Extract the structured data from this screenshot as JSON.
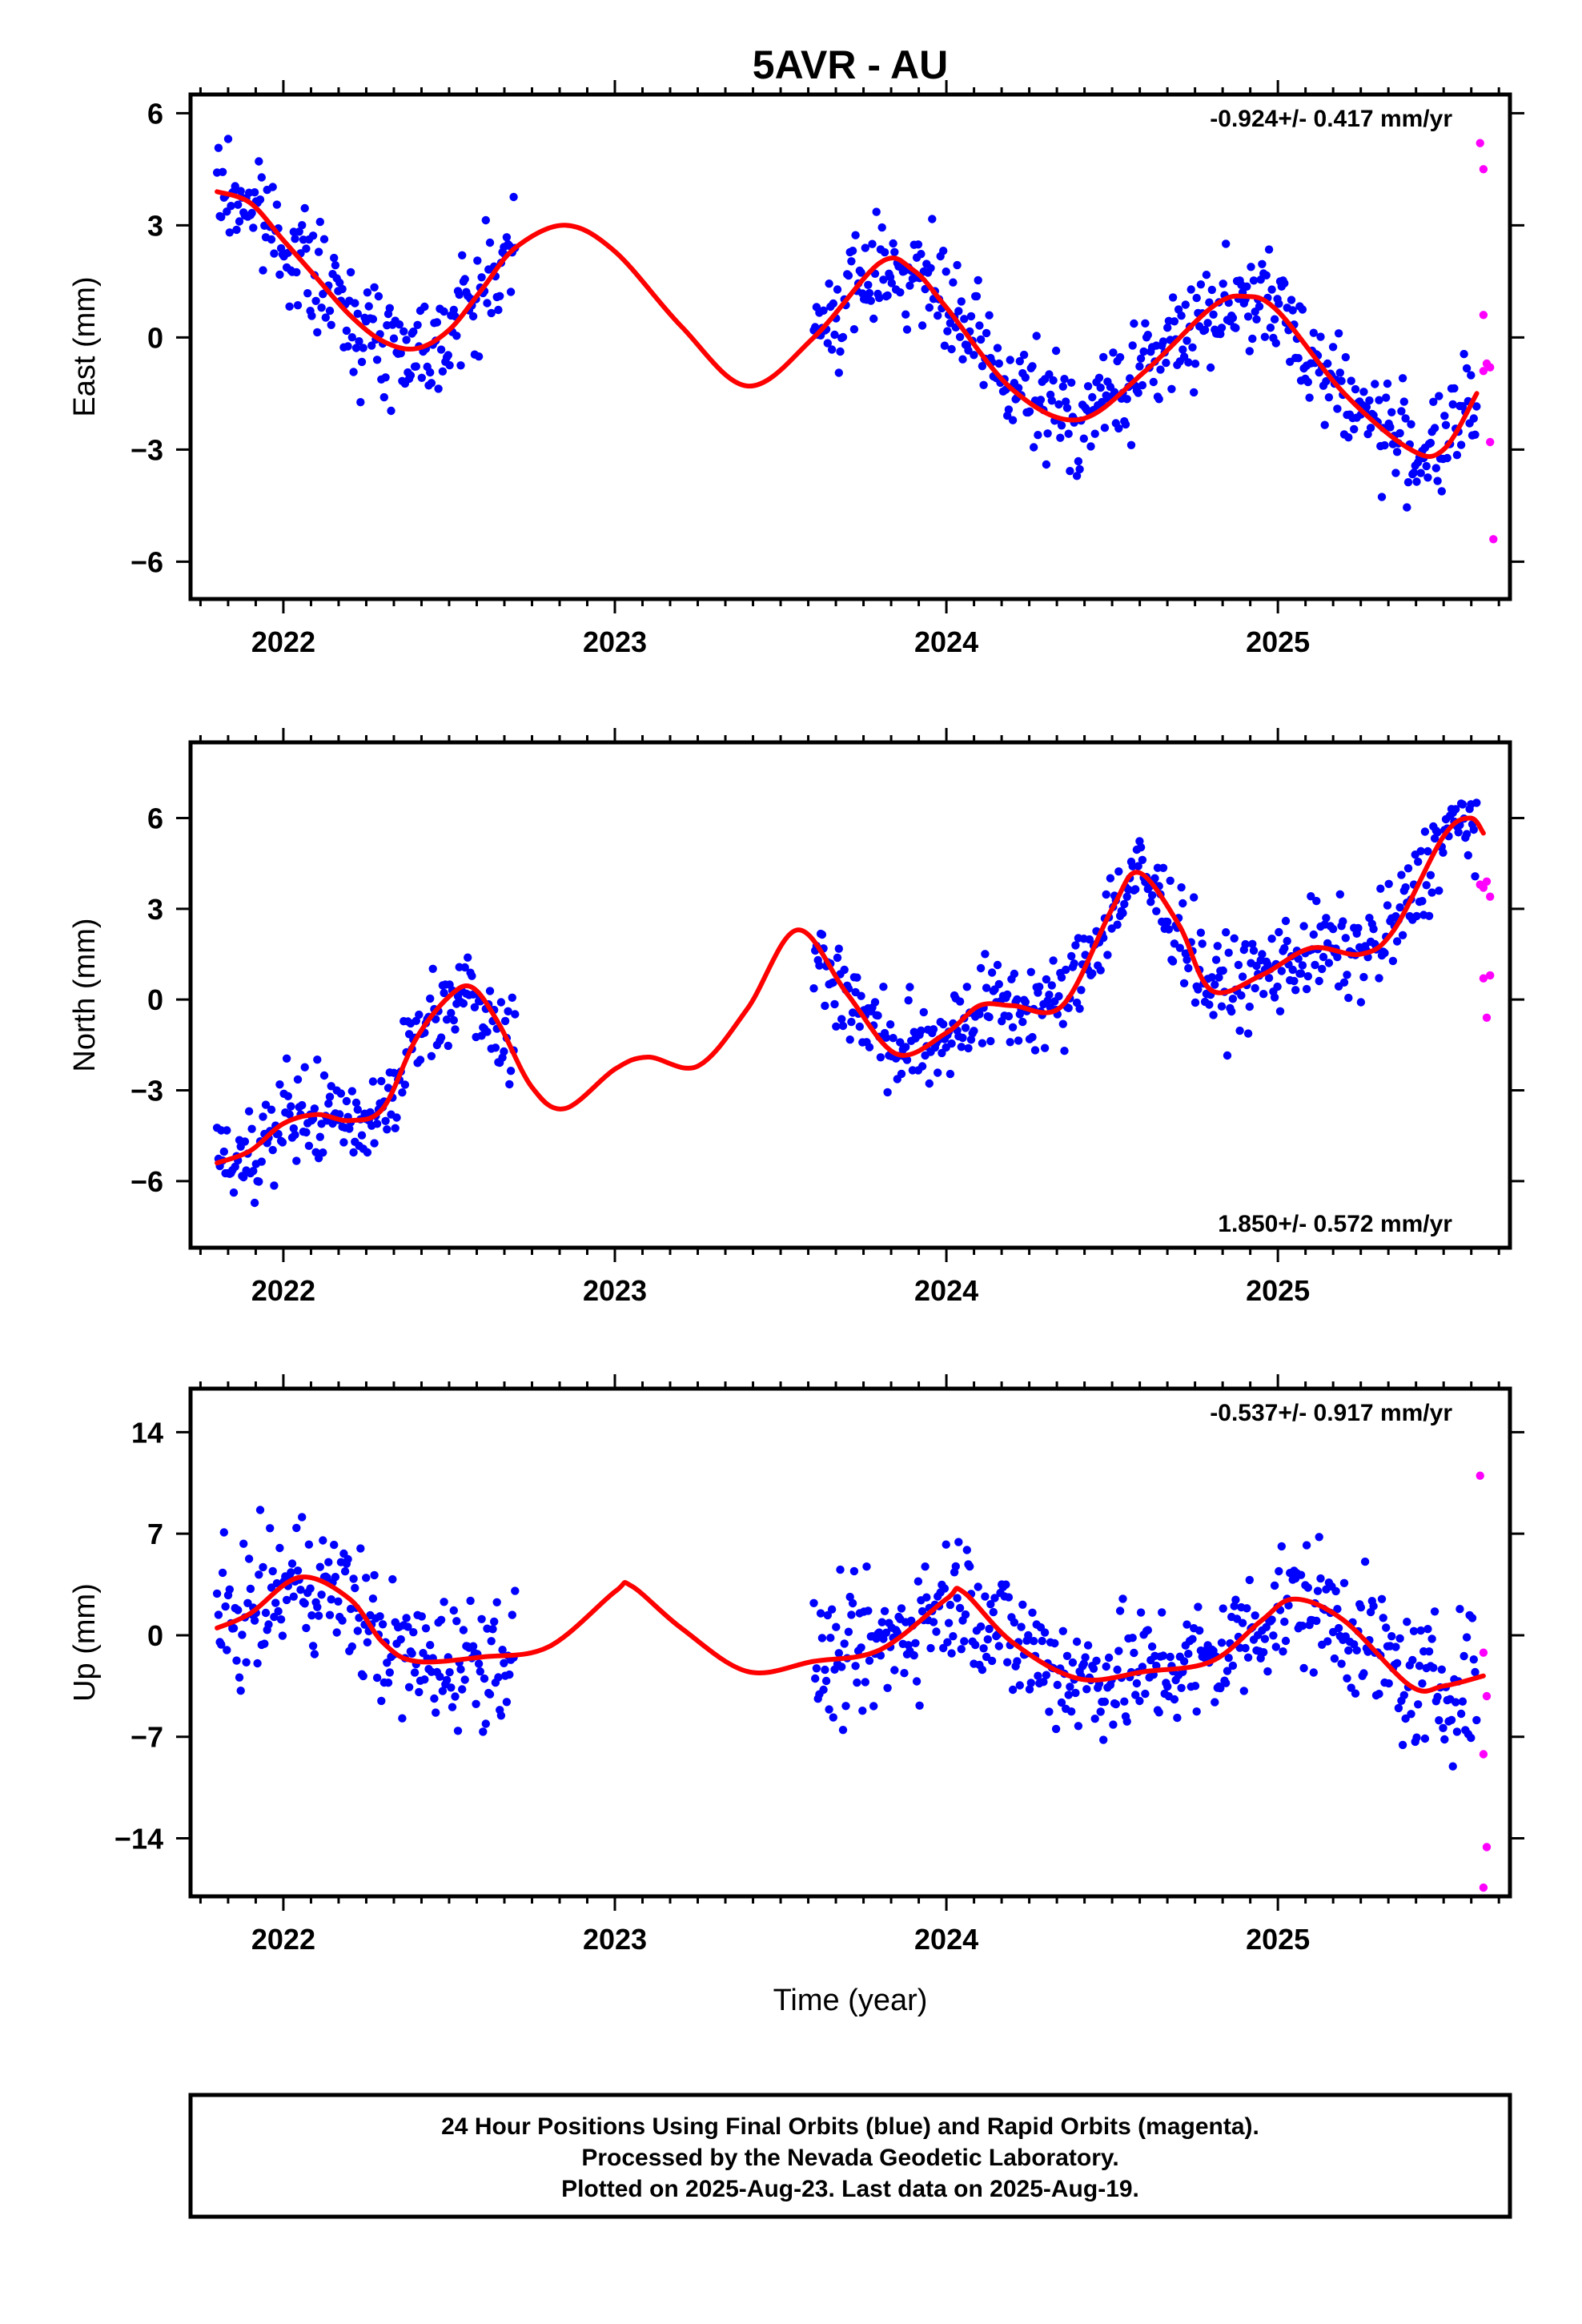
{
  "title": "5AVR - AU",
  "xlabel": "Time (year)",
  "footer": {
    "line1": "24 Hour Positions Using Final Orbits (blue) and Rapid Orbits (magenta).",
    "line2": "Processed by the Nevada Geodetic Laboratory.",
    "line3": "Plotted on 2025-Aug-23. Last data on 2025-Aug-19."
  },
  "colors": {
    "final": "#0000ff",
    "rapid": "#ff00ff",
    "model": "#ff0000",
    "frame": "#000000"
  },
  "chart_data": [
    {
      "type": "scatter",
      "ylabel": "East (mm)",
      "rate_label": "-0.924+/- 0.417 mm/yr",
      "rate_position": "top-right",
      "xlim": [
        2021.72,
        2025.7
      ],
      "ylim": [
        -7.0,
        6.5
      ],
      "xticks": [
        2022,
        2023,
        2024,
        2025
      ],
      "yticks": [
        6,
        3,
        0,
        -3,
        -6
      ],
      "ytick_labels": [
        "6",
        "3",
        "0",
        "−3",
        "−6"
      ],
      "segments": [
        [
          2021.8,
          2022.7
        ],
        [
          2023.6,
          2025.6
        ]
      ],
      "model_curve": {
        "x": [
          2021.8,
          2021.9,
          2022.0,
          2022.1,
          2022.2,
          2022.3,
          2022.4,
          2022.5,
          2022.6,
          2022.7,
          2022.85,
          2023.0,
          2023.2,
          2023.4,
          2023.6,
          2023.8,
          2023.9,
          2024.0,
          2024.2,
          2024.4,
          2024.6,
          2024.8,
          2024.9,
          2025.0,
          2025.2,
          2025.4,
          2025.5,
          2025.6
        ],
        "y": [
          3.9,
          3.6,
          2.6,
          1.6,
          0.6,
          -0.1,
          -0.3,
          0.2,
          1.3,
          2.4,
          3.0,
          2.3,
          0.3,
          -1.3,
          0.0,
          2.0,
          1.8,
          0.8,
          -1.4,
          -2.2,
          -0.9,
          0.8,
          1.1,
          0.7,
          -1.5,
          -3.0,
          -3.0,
          -1.5
        ]
      },
      "rapid_points": {
        "x": [
          2025.61,
          2025.62,
          2025.62,
          2025.63,
          2025.64,
          2025.64,
          2025.65,
          2025.62
        ],
        "y": [
          5.2,
          4.5,
          0.6,
          -0.7,
          -0.8,
          -2.8,
          -5.4,
          -0.9
        ]
      }
    },
    {
      "type": "scatter",
      "ylabel": "North (mm)",
      "rate_label": "1.850+/- 0.572 mm/yr",
      "rate_position": "bottom-right",
      "xlim": [
        2021.72,
        2025.7
      ],
      "ylim": [
        -8.2,
        8.5
      ],
      "xticks": [
        2022,
        2023,
        2024,
        2025
      ],
      "yticks": [
        6,
        3,
        0,
        -3,
        -6
      ],
      "ytick_labels": [
        "6",
        "3",
        "0",
        "−3",
        "−6"
      ],
      "segments": [
        [
          2021.8,
          2022.7
        ],
        [
          2023.6,
          2025.6
        ]
      ],
      "model_curve": {
        "x": [
          2021.8,
          2021.9,
          2022.0,
          2022.1,
          2022.2,
          2022.3,
          2022.4,
          2022.5,
          2022.57,
          2022.65,
          2022.75,
          2022.85,
          2023.0,
          2023.1,
          2023.25,
          2023.4,
          2023.55,
          2023.7,
          2023.85,
          2024.0,
          2024.1,
          2024.2,
          2024.35,
          2024.5,
          2024.58,
          2024.7,
          2024.8,
          2024.95,
          2025.1,
          2025.25,
          2025.35,
          2025.5,
          2025.58,
          2025.62
        ],
        "y": [
          -5.4,
          -5.0,
          -4.1,
          -3.8,
          -4.0,
          -3.6,
          -1.3,
          0.1,
          0.4,
          -0.8,
          -2.9,
          -3.6,
          -2.3,
          -1.9,
          -2.2,
          -0.3,
          2.3,
          0.2,
          -1.8,
          -1.1,
          -0.2,
          -0.2,
          -0.2,
          3.0,
          4.2,
          2.5,
          0.3,
          0.8,
          1.7,
          1.5,
          2.3,
          5.4,
          6.0,
          5.5
        ]
      },
      "rapid_points": {
        "x": [
          2025.61,
          2025.62,
          2025.63,
          2025.64,
          2025.62,
          2025.63,
          2025.64
        ],
        "y": [
          3.8,
          3.7,
          3.9,
          0.8,
          0.7,
          -0.6,
          3.4
        ]
      }
    },
    {
      "type": "scatter",
      "ylabel": "Up (mm)",
      "rate_label": "-0.537+/- 0.917 mm/yr",
      "rate_position": "top-right",
      "xlim": [
        2021.72,
        2025.7
      ],
      "ylim": [
        -18.0,
        17.0
      ],
      "xticks": [
        2022,
        2023,
        2024,
        2025
      ],
      "yticks": [
        14,
        7,
        0,
        -7,
        -14
      ],
      "ytick_labels": [
        "14",
        "7",
        "0",
        "−7",
        "−14"
      ],
      "segments": [
        [
          2021.8,
          2022.7
        ],
        [
          2023.6,
          2025.6
        ]
      ],
      "model_curve": {
        "x": [
          2021.8,
          2021.9,
          2022.05,
          2022.2,
          2022.3,
          2022.4,
          2022.6,
          2022.8,
          2023.0,
          2023.05,
          2023.2,
          2023.4,
          2023.6,
          2023.8,
          2024.0,
          2024.05,
          2024.2,
          2024.4,
          2024.6,
          2024.8,
          2024.95,
          2025.05,
          2025.2,
          2025.4,
          2025.5,
          2025.62
        ],
        "y": [
          0.5,
          1.5,
          4.0,
          2.5,
          -0.5,
          -1.8,
          -1.5,
          -0.8,
          3.0,
          3.4,
          0.5,
          -2.5,
          -1.8,
          -1.0,
          2.5,
          3.0,
          -0.5,
          -3.0,
          -2.5,
          -1.8,
          1.0,
          2.5,
          1.0,
          -3.5,
          -3.5,
          -2.8
        ]
      },
      "rapid_points": {
        "x": [
          2025.61,
          2025.62,
          2025.63,
          2025.62,
          2025.63,
          2025.62
        ],
        "y": [
          11.0,
          -1.2,
          -4.2,
          -8.2,
          -14.6,
          -17.4
        ]
      }
    }
  ]
}
